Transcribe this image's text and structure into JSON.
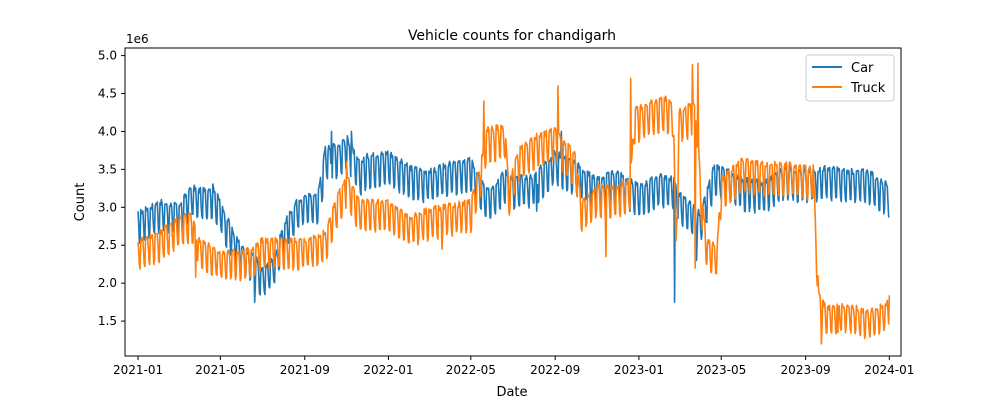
{
  "chart_data": {
    "type": "line",
    "title": "Vehicle counts for chandigarh",
    "xlabel": "Date",
    "ylabel": "Count",
    "y_scale_label": "1e6",
    "y_multiplier": 1000000,
    "xlim": [
      "2020-12-13",
      "2024-01-18"
    ],
    "ylim": [
      1.04,
      5.1
    ],
    "x_ticks": [
      {
        "date": "2021-01-01",
        "label": "2021-01"
      },
      {
        "date": "2021-05-01",
        "label": "2021-05"
      },
      {
        "date": "2021-09-01",
        "label": "2021-09"
      },
      {
        "date": "2022-01-01",
        "label": "2022-01"
      },
      {
        "date": "2022-05-01",
        "label": "2022-05"
      },
      {
        "date": "2022-09-01",
        "label": "2022-09"
      },
      {
        "date": "2023-01-01",
        "label": "2023-01"
      },
      {
        "date": "2023-05-01",
        "label": "2023-05"
      },
      {
        "date": "2023-09-01",
        "label": "2023-09"
      },
      {
        "date": "2024-01-01",
        "label": "2024-01"
      }
    ],
    "y_ticks": [
      {
        "value": 1.5,
        "label": "1.5"
      },
      {
        "value": 2.0,
        "label": "2.0"
      },
      {
        "value": 2.5,
        "label": "2.5"
      },
      {
        "value": 3.0,
        "label": "3.0"
      },
      {
        "value": 3.5,
        "label": "3.5"
      },
      {
        "value": 4.0,
        "label": "4.0"
      },
      {
        "value": 4.5,
        "label": "4.5"
      },
      {
        "value": 5.0,
        "label": "5.0"
      }
    ],
    "grid": false,
    "legend_position": "top-right",
    "series": [
      {
        "name": "Car",
        "color": "#1f77b4",
        "points": [
          [
            "2021-01-01",
            2.85
          ],
          [
            "2021-02-01",
            3.0
          ],
          [
            "2021-03-01",
            2.95
          ],
          [
            "2021-03-20",
            3.2
          ],
          [
            "2021-04-01",
            3.15
          ],
          [
            "2021-04-20",
            3.2
          ],
          [
            "2021-05-01",
            3.0
          ],
          [
            "2021-05-20",
            2.6
          ],
          [
            "2021-06-01",
            2.4
          ],
          [
            "2021-06-20",
            2.3
          ],
          [
            "2021-07-01",
            2.1
          ],
          [
            "2021-07-20",
            2.3
          ],
          [
            "2021-08-01",
            2.7
          ],
          [
            "2021-08-20",
            3.0
          ],
          [
            "2021-09-01",
            3.1
          ],
          [
            "2021-09-20",
            3.1
          ],
          [
            "2021-10-01",
            3.7
          ],
          [
            "2021-10-20",
            3.75
          ],
          [
            "2021-11-01",
            3.85
          ],
          [
            "2021-11-20",
            3.5
          ],
          [
            "2021-12-01",
            3.6
          ],
          [
            "2022-01-01",
            3.65
          ],
          [
            "2022-02-01",
            3.45
          ],
          [
            "2022-03-01",
            3.4
          ],
          [
            "2022-04-01",
            3.5
          ],
          [
            "2022-05-01",
            3.55
          ],
          [
            "2022-05-20",
            3.2
          ],
          [
            "2022-06-01",
            3.2
          ],
          [
            "2022-06-20",
            3.4
          ],
          [
            "2022-07-01",
            3.3
          ],
          [
            "2022-08-01",
            3.35
          ],
          [
            "2022-09-01",
            3.65
          ],
          [
            "2022-10-01",
            3.5
          ],
          [
            "2022-11-01",
            3.3
          ],
          [
            "2022-12-01",
            3.4
          ],
          [
            "2023-01-01",
            3.2
          ],
          [
            "2023-02-01",
            3.35
          ],
          [
            "2023-02-22",
            3.3
          ],
          [
            "2023-03-01",
            3.1
          ],
          [
            "2023-04-01",
            2.85
          ],
          [
            "2023-04-20",
            3.45
          ],
          [
            "2023-05-01",
            3.45
          ],
          [
            "2023-06-01",
            3.3
          ],
          [
            "2023-07-01",
            3.25
          ],
          [
            "2023-08-01",
            3.45
          ],
          [
            "2023-09-01",
            3.4
          ],
          [
            "2023-10-01",
            3.45
          ],
          [
            "2023-11-01",
            3.4
          ],
          [
            "2023-12-01",
            3.4
          ],
          [
            "2024-01-01",
            3.2
          ]
        ],
        "events": [
          [
            "2021-06-20",
            1.75
          ],
          [
            "2021-10-10",
            4.0
          ],
          [
            "2021-11-08",
            4.0
          ],
          [
            "2022-08-05",
            2.95
          ],
          [
            "2022-09-10",
            4.0
          ],
          [
            "2023-02-22",
            1.75
          ],
          [
            "2023-03-26",
            2.3
          ]
        ]
      },
      {
        "name": "Truck",
        "color": "#ff7f0e",
        "points": [
          [
            "2021-01-01",
            2.5
          ],
          [
            "2021-02-01",
            2.6
          ],
          [
            "2021-03-01",
            2.8
          ],
          [
            "2021-03-20",
            2.85
          ],
          [
            "2021-04-01",
            2.5
          ],
          [
            "2021-04-20",
            2.4
          ],
          [
            "2021-05-01",
            2.35
          ],
          [
            "2021-06-01",
            2.35
          ],
          [
            "2021-06-20",
            2.4
          ],
          [
            "2021-07-01",
            2.5
          ],
          [
            "2021-08-01",
            2.5
          ],
          [
            "2021-09-01",
            2.5
          ],
          [
            "2021-10-01",
            2.6
          ],
          [
            "2021-10-15",
            3.0
          ],
          [
            "2021-11-01",
            3.35
          ],
          [
            "2021-11-20",
            3.0
          ],
          [
            "2022-01-01",
            3.0
          ],
          [
            "2022-02-01",
            2.8
          ],
          [
            "2022-03-01",
            2.9
          ],
          [
            "2022-04-01",
            2.95
          ],
          [
            "2022-05-01",
            3.0
          ],
          [
            "2022-05-15",
            3.5
          ],
          [
            "2022-05-25",
            3.95
          ],
          [
            "2022-06-20",
            4.0
          ],
          [
            "2022-06-25",
            3.2
          ],
          [
            "2022-07-10",
            3.7
          ],
          [
            "2022-08-01",
            3.85
          ],
          [
            "2022-09-01",
            3.95
          ],
          [
            "2022-10-01",
            3.6
          ],
          [
            "2022-10-10",
            3.0
          ],
          [
            "2022-11-01",
            3.2
          ],
          [
            "2022-12-01",
            3.2
          ],
          [
            "2022-12-20",
            3.3
          ],
          [
            "2022-12-25",
            4.2
          ],
          [
            "2023-01-15",
            4.3
          ],
          [
            "2023-02-10",
            4.35
          ],
          [
            "2023-02-20",
            4.3
          ],
          [
            "2023-02-24",
            2.5
          ],
          [
            "2023-03-01",
            4.2
          ],
          [
            "2023-03-26",
            4.3
          ],
          [
            "2023-04-01",
            3.2
          ],
          [
            "2023-04-10",
            2.5
          ],
          [
            "2023-04-25",
            2.4
          ],
          [
            "2023-05-01",
            3.3
          ],
          [
            "2023-06-01",
            3.55
          ],
          [
            "2023-07-01",
            3.5
          ],
          [
            "2023-08-01",
            3.5
          ],
          [
            "2023-09-01",
            3.45
          ],
          [
            "2023-09-12",
            3.45
          ],
          [
            "2023-09-20",
            1.8
          ],
          [
            "2023-10-01",
            1.6
          ],
          [
            "2023-11-01",
            1.65
          ],
          [
            "2023-12-01",
            1.55
          ],
          [
            "2024-01-01",
            1.7
          ]
        ],
        "events": [
          [
            "2021-03-26",
            2.08
          ],
          [
            "2021-11-01",
            3.6
          ],
          [
            "2022-03-20",
            2.45
          ],
          [
            "2022-05-20",
            4.4
          ],
          [
            "2022-09-05",
            4.6
          ],
          [
            "2022-11-14",
            2.35
          ],
          [
            "2022-12-20",
            4.7
          ],
          [
            "2023-03-20",
            4.88
          ],
          [
            "2023-03-24",
            2.2
          ],
          [
            "2023-03-28",
            4.9
          ],
          [
            "2023-09-24",
            1.2
          ],
          [
            "2023-10-18",
            1.35
          ],
          [
            "2024-01-01",
            1.84
          ]
        ]
      }
    ]
  }
}
